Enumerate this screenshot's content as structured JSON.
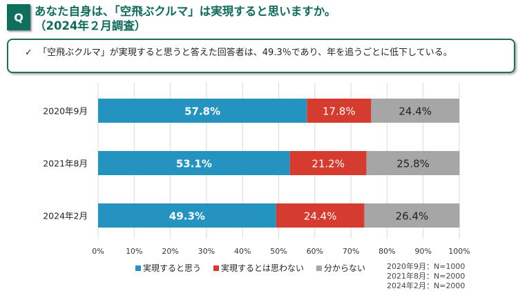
{
  "header": {
    "q_label": "Q",
    "title_line1": "あなた自身は、「空飛ぶクルマ」は実現すると思いますか。",
    "title_line2": "（2024年２月調査）"
  },
  "note": {
    "check_icon": "check-icon",
    "text": "「空飛ぶクルマ」が実現すると思うと答えた回答者は、49.3％であり、年を追うごとに低下している。"
  },
  "chart_data": {
    "type": "bar",
    "orientation": "horizontal",
    "stacked": true,
    "percent": true,
    "categories": [
      "2020年9月",
      "2021年8月",
      "2024年2月"
    ],
    "series": [
      {
        "name": "実現すると思う",
        "values": [
          57.8,
          53.1,
          49.3
        ],
        "color": "#2493bf"
      },
      {
        "name": "実現するとは思わない",
        "values": [
          17.8,
          21.2,
          24.4
        ],
        "color": "#d63b2f"
      },
      {
        "name": "分からない",
        "values": [
          24.4,
          25.8,
          26.4
        ],
        "color": "#a6a6a6"
      }
    ],
    "xlim": [
      0,
      100
    ],
    "xticks": [
      "0%",
      "10%",
      "20%",
      "30%",
      "40%",
      "50%",
      "60%",
      "70%",
      "80%",
      "90%",
      "100%"
    ],
    "grid": true,
    "legend": "bottom",
    "sample_sizes": [
      "2020年9月：N=1000",
      "2021年8月：N=2000",
      "2024年2月：N=2000"
    ]
  }
}
